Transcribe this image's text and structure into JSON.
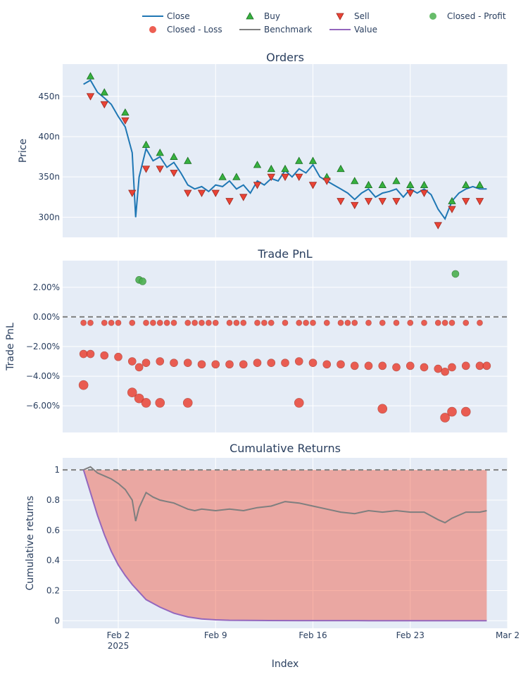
{
  "chart_data": [
    {
      "type": "line",
      "title": "Orders",
      "ylabel": "Price",
      "x_range": [
        "2025-01-29",
        "2025-03-02"
      ],
      "ylim": [
        275,
        490
      ],
      "yticks": [
        {
          "value": 300,
          "label": "300n"
        },
        {
          "value": 350,
          "label": "350n"
        },
        {
          "value": 400,
          "label": "400n"
        },
        {
          "value": 450,
          "label": "450n"
        }
      ],
      "grid": true,
      "close_segments": [
        {
          "x": [
            "2025-01-30T12:00",
            "2025-01-31",
            "2025-01-31T12:00",
            "2025-02-01",
            "2025-02-01T12:00",
            "2025-02-02",
            "2025-02-02T12:00",
            "2025-02-03",
            "2025-02-03T06:00",
            "2025-02-03T12:00",
            "2025-02-04",
            "2025-02-04T12:00",
            "2025-02-05",
            "2025-02-05T12:00",
            "2025-02-06",
            "2025-02-06T12:00",
            "2025-02-07",
            "2025-02-07T12:00",
            "2025-02-08",
            "2025-02-08T12:00",
            "2025-02-09",
            "2025-02-09T12:00",
            "2025-02-10",
            "2025-02-10T12:00",
            "2025-02-11",
            "2025-02-11T12:00",
            "2025-02-12",
            "2025-02-12T12:00",
            "2025-02-13",
            "2025-02-13T12:00",
            "2025-02-14",
            "2025-02-14T12:00",
            "2025-02-15",
            "2025-02-15T12:00",
            "2025-02-16",
            "2025-02-16T12:00",
            "2025-02-17",
            "2025-02-17T12:00",
            "2025-02-18",
            "2025-02-18T12:00",
            "2025-02-19",
            "2025-02-19T12:00",
            "2025-02-20",
            "2025-02-20T12:00",
            "2025-02-21",
            "2025-02-21T12:00",
            "2025-02-22",
            "2025-02-22T12:00",
            "2025-02-23",
            "2025-02-23T12:00",
            "2025-02-24",
            "2025-02-24T12:00",
            "2025-02-25",
            "2025-02-25T12:00",
            "2025-02-26",
            "2025-02-26T12:00",
            "2025-02-27",
            "2025-02-27T12:00",
            "2025-02-28",
            "2025-02-28T12:00"
          ],
          "y": [
            465,
            470,
            455,
            448,
            440,
            425,
            412,
            380,
            300,
            350,
            385,
            370,
            375,
            362,
            368,
            355,
            340,
            335,
            338,
            332,
            340,
            338,
            345,
            335,
            340,
            330,
            345,
            340,
            348,
            345,
            358,
            350,
            360,
            355,
            365,
            350,
            345,
            340,
            335,
            330,
            322,
            330,
            335,
            325,
            330,
            332,
            335,
            325,
            335,
            330,
            335,
            328,
            310,
            298,
            320,
            330,
            335,
            338,
            335,
            335
          ]
        }
      ],
      "buy": {
        "name": "Buy",
        "x": [
          "2025-01-31",
          "2025-02-01",
          "2025-02-02T12:00",
          "2025-02-04",
          "2025-02-05",
          "2025-02-06",
          "2025-02-07",
          "2025-02-09T12:00",
          "2025-02-10T12:00",
          "2025-02-12",
          "2025-02-13",
          "2025-02-14",
          "2025-02-15",
          "2025-02-16",
          "2025-02-17",
          "2025-02-18",
          "2025-02-19",
          "2025-02-20",
          "2025-02-21",
          "2025-02-22",
          "2025-02-23",
          "2025-02-24",
          "2025-02-26",
          "2025-02-27",
          "2025-02-28"
        ],
        "y": [
          475,
          455,
          430,
          390,
          380,
          375,
          370,
          350,
          350,
          365,
          360,
          360,
          370,
          370,
          350,
          360,
          345,
          340,
          340,
          345,
          340,
          340,
          320,
          340,
          340
        ]
      },
      "sell": {
        "name": "Sell",
        "x": [
          "2025-01-31",
          "2025-02-01",
          "2025-02-02T12:00",
          "2025-02-03",
          "2025-02-04",
          "2025-02-05",
          "2025-02-06",
          "2025-02-07",
          "2025-02-08",
          "2025-02-09",
          "2025-02-10",
          "2025-02-11",
          "2025-02-12",
          "2025-02-13",
          "2025-02-14",
          "2025-02-15",
          "2025-02-16",
          "2025-02-17",
          "2025-02-18",
          "2025-02-19",
          "2025-02-20",
          "2025-02-21",
          "2025-02-22",
          "2025-02-23",
          "2025-02-24",
          "2025-02-25",
          "2025-02-26",
          "2025-02-27",
          "2025-02-28"
        ],
        "y": [
          450,
          440,
          420,
          330,
          360,
          360,
          355,
          330,
          330,
          330,
          320,
          325,
          340,
          350,
          350,
          350,
          340,
          345,
          320,
          315,
          320,
          320,
          320,
          330,
          330,
          290,
          310,
          320,
          320
        ]
      }
    },
    {
      "type": "scatter",
      "title": "Trade PnL",
      "ylabel": "Trade PnL",
      "x_range": [
        "2025-01-29",
        "2025-03-02"
      ],
      "ylim": [
        -0.078,
        0.038
      ],
      "yticks": [
        {
          "value": 0.02,
          "label": "2.00%"
        },
        {
          "value": 0.0,
          "label": "0.00%"
        },
        {
          "value": -0.02,
          "label": "−2.00%"
        },
        {
          "value": -0.04,
          "label": "−4.00%"
        },
        {
          "value": -0.06,
          "label": "−6.00%"
        }
      ],
      "reference_line": 0,
      "grid": true,
      "profit": {
        "name": "Closed - Profit",
        "x": [
          "2025-02-03T12:00",
          "2025-02-03T18:00",
          "2025-02-26T06:00"
        ],
        "y": [
          0.025,
          0.024,
          0.029
        ]
      },
      "loss_small": {
        "x": [
          "2025-01-30T12:00",
          "2025-01-31",
          "2025-02-01",
          "2025-02-01T12:00",
          "2025-02-02",
          "2025-02-03",
          "2025-02-04",
          "2025-02-04T12:00",
          "2025-02-05",
          "2025-02-05T12:00",
          "2025-02-06",
          "2025-02-07",
          "2025-02-07T12:00",
          "2025-02-08",
          "2025-02-08T12:00",
          "2025-02-09",
          "2025-02-10",
          "2025-02-10T12:00",
          "2025-02-11",
          "2025-02-12",
          "2025-02-12T12:00",
          "2025-02-13",
          "2025-02-14",
          "2025-02-15",
          "2025-02-15T12:00",
          "2025-02-16",
          "2025-02-17",
          "2025-02-18",
          "2025-02-18T12:00",
          "2025-02-19",
          "2025-02-20",
          "2025-02-21",
          "2025-02-22",
          "2025-02-23",
          "2025-02-24",
          "2025-02-25",
          "2025-02-25T12:00",
          "2025-02-26",
          "2025-02-27",
          "2025-02-28"
        ],
        "y": [
          -0.004,
          -0.004,
          -0.004,
          -0.004,
          -0.004,
          -0.004,
          -0.004,
          -0.004,
          -0.004,
          -0.004,
          -0.004,
          -0.004,
          -0.004,
          -0.004,
          -0.004,
          -0.004,
          -0.004,
          -0.004,
          -0.004,
          -0.004,
          -0.004,
          -0.004,
          -0.004,
          -0.004,
          -0.004,
          -0.004,
          -0.004,
          -0.004,
          -0.004,
          -0.004,
          -0.004,
          -0.004,
          -0.004,
          -0.004,
          -0.004,
          -0.004,
          -0.004,
          -0.004,
          -0.004,
          -0.004
        ]
      },
      "loss_band": {
        "x": [
          "2025-01-30T12:00",
          "2025-01-31",
          "2025-02-01",
          "2025-02-02",
          "2025-02-03",
          "2025-02-03T12:00",
          "2025-02-04",
          "2025-02-05",
          "2025-02-06",
          "2025-02-07",
          "2025-02-08",
          "2025-02-09",
          "2025-02-10",
          "2025-02-11",
          "2025-02-12",
          "2025-02-13",
          "2025-02-14",
          "2025-02-15",
          "2025-02-16",
          "2025-02-17",
          "2025-02-18",
          "2025-02-19",
          "2025-02-20",
          "2025-02-21",
          "2025-02-22",
          "2025-02-23",
          "2025-02-24",
          "2025-02-25",
          "2025-02-25T12:00",
          "2025-02-26",
          "2025-02-27",
          "2025-02-28",
          "2025-02-28T12:00"
        ],
        "y": [
          -0.025,
          -0.025,
          -0.026,
          -0.027,
          -0.03,
          -0.034,
          -0.031,
          -0.03,
          -0.031,
          -0.031,
          -0.032,
          -0.032,
          -0.032,
          -0.032,
          -0.031,
          -0.031,
          -0.031,
          -0.03,
          -0.031,
          -0.032,
          -0.032,
          -0.033,
          -0.033,
          -0.033,
          -0.034,
          -0.033,
          -0.034,
          -0.035,
          -0.037,
          -0.034,
          -0.033,
          -0.033,
          -0.033
        ]
      },
      "loss_big": {
        "name": "Closed - Loss",
        "x": [
          "2025-01-30T12:00",
          "2025-02-03",
          "2025-02-03T12:00",
          "2025-02-04",
          "2025-02-05",
          "2025-02-07",
          "2025-02-15",
          "2025-02-21",
          "2025-02-25T12:00",
          "2025-02-26",
          "2025-02-27"
        ],
        "y": [
          -0.046,
          -0.051,
          -0.055,
          -0.058,
          -0.058,
          -0.058,
          -0.058,
          -0.062,
          -0.068,
          -0.064,
          -0.064
        ]
      }
    },
    {
      "type": "area",
      "title": "Cumulative Returns",
      "xlabel": "Index",
      "ylabel": "Cumulative returns",
      "x_range": [
        "2025-01-29",
        "2025-03-02"
      ],
      "ylim": [
        -0.05,
        1.08
      ],
      "yticks": [
        {
          "value": 0,
          "label": "0"
        },
        {
          "value": 0.2,
          "label": "0.2"
        },
        {
          "value": 0.4,
          "label": "0.4"
        },
        {
          "value": 0.6,
          "label": "0.6"
        },
        {
          "value": 0.8,
          "label": "0.8"
        },
        {
          "value": 1,
          "label": "1"
        }
      ],
      "xticks": [
        {
          "value": "2025-02-02",
          "label": "Feb 2",
          "sublabel": "2025"
        },
        {
          "value": "2025-02-09",
          "label": "Feb 9"
        },
        {
          "value": "2025-02-16",
          "label": "Feb 16"
        },
        {
          "value": "2025-02-23",
          "label": "Feb 23"
        },
        {
          "value": "2025-03-02",
          "label": "Mar 2"
        }
      ],
      "reference_line": 1,
      "grid": true,
      "benchmark": {
        "name": "Benchmark",
        "x": [
          "2025-01-30T12:00",
          "2025-01-31",
          "2025-01-31T12:00",
          "2025-02-01",
          "2025-02-01T12:00",
          "2025-02-02",
          "2025-02-02T12:00",
          "2025-02-03",
          "2025-02-03T06:00",
          "2025-02-03T12:00",
          "2025-02-04",
          "2025-02-04T12:00",
          "2025-02-05",
          "2025-02-05T12:00",
          "2025-02-06",
          "2025-02-06T12:00",
          "2025-02-07",
          "2025-02-07T12:00",
          "2025-02-08",
          "2025-02-09",
          "2025-02-10",
          "2025-02-11",
          "2025-02-12",
          "2025-02-13",
          "2025-02-14",
          "2025-02-15",
          "2025-02-16",
          "2025-02-17",
          "2025-02-18",
          "2025-02-19",
          "2025-02-20",
          "2025-02-21",
          "2025-02-22",
          "2025-02-23",
          "2025-02-24",
          "2025-02-25",
          "2025-02-25T12:00",
          "2025-02-26",
          "2025-02-27",
          "2025-02-28",
          "2025-02-28T12:00"
        ],
        "y": [
          1.0,
          1.02,
          0.98,
          0.96,
          0.94,
          0.91,
          0.87,
          0.8,
          0.66,
          0.75,
          0.85,
          0.82,
          0.8,
          0.79,
          0.78,
          0.76,
          0.74,
          0.73,
          0.74,
          0.73,
          0.74,
          0.73,
          0.75,
          0.76,
          0.79,
          0.78,
          0.76,
          0.74,
          0.72,
          0.71,
          0.73,
          0.72,
          0.73,
          0.72,
          0.72,
          0.67,
          0.65,
          0.68,
          0.72,
          0.72,
          0.73
        ]
      },
      "value": {
        "name": "Value",
        "x": [
          "2025-01-30T12:00",
          "2025-01-31",
          "2025-01-31T12:00",
          "2025-02-01",
          "2025-02-01T12:00",
          "2025-02-02",
          "2025-02-02T12:00",
          "2025-02-03",
          "2025-02-03T12:00",
          "2025-02-04",
          "2025-02-05",
          "2025-02-06",
          "2025-02-07",
          "2025-02-08",
          "2025-02-09",
          "2025-02-10",
          "2025-02-12",
          "2025-02-15",
          "2025-02-20",
          "2025-02-25",
          "2025-02-28T12:00"
        ],
        "y": [
          1.0,
          0.85,
          0.7,
          0.57,
          0.46,
          0.37,
          0.3,
          0.24,
          0.19,
          0.14,
          0.09,
          0.05,
          0.025,
          0.012,
          0.006,
          0.003,
          0.002,
          0.001,
          0.0005,
          0.0003,
          0.0002
        ]
      },
      "fill_between": {
        "top": 1,
        "bottom": "value",
        "color": "#EF553B"
      }
    }
  ],
  "legend": {
    "placement": "top",
    "items": [
      {
        "label": "Close",
        "symbol": "line",
        "color": "#1f77b4"
      },
      {
        "label": "Buy",
        "symbol": "triangle-up",
        "color": "#37B13F"
      },
      {
        "label": "Sell",
        "symbol": "triangle-down",
        "color": "#EA4335"
      },
      {
        "label": "Closed - Profit",
        "symbol": "circle",
        "color": "#4CB050"
      },
      {
        "label": "Closed - Loss",
        "symbol": "circle",
        "color": "#EA4335"
      },
      {
        "label": "Benchmark",
        "symbol": "line",
        "color": "#7f7f7f"
      },
      {
        "label": "Value",
        "symbol": "line",
        "color": "#9467bd"
      }
    ]
  },
  "colors": {
    "plot_bg": "#E5ECF6",
    "grid": "#ffffff",
    "close": "#1f77b4",
    "buy_fill": "#37B13F",
    "buy_edge": "#1B6F24",
    "sell_fill": "#EA4335",
    "sell_edge": "#9C2A20",
    "profit": "#4CB050",
    "loss": "#EA4335",
    "benchmark": "#7f7f7f",
    "value": "#9467bd",
    "ref_line": "#808080"
  }
}
